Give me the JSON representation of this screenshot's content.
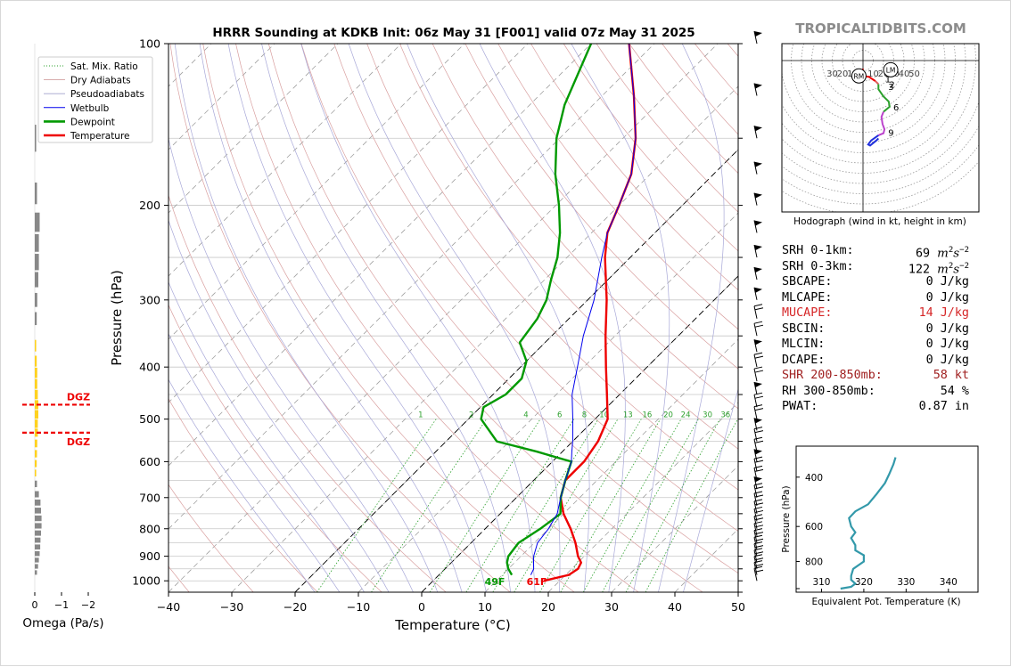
{
  "figure": {
    "title": "HRRR Sounding at KDKB Init: 06z May 31 [F001] valid 07z May 31 2025",
    "brand": "TROPICALTIDBITS.COM"
  },
  "chart_data": [
    {
      "type": "line",
      "name": "skewt",
      "xlabel": "Temperature (°C)",
      "ylabel": "Pressure (hPa)",
      "xlim": [
        -40,
        50
      ],
      "ylim": [
        1050,
        100
      ],
      "y_scale": "log",
      "skew": "temperature lines slant 45° to the right",
      "xticks": [
        -40,
        -30,
        -20,
        -10,
        0,
        10,
        20,
        30,
        40,
        50
      ],
      "xtick_labels": [
        "−40",
        "−30",
        "−20",
        "−10",
        "0",
        "10",
        "20",
        "30",
        "40",
        "50"
      ],
      "yticks": [
        100,
        200,
        300,
        400,
        500,
        600,
        700,
        800,
        900,
        1000
      ],
      "grid": true,
      "legend": {
        "position": "top-left",
        "entries": [
          {
            "label": "Sat. Mix. Ratio",
            "color": "#2ca02c",
            "style": "dotted"
          },
          {
            "label": "Dry Adiabats",
            "color": "#d2a0a0",
            "style": "solid-thin"
          },
          {
            "label": "Pseudoadiabats",
            "color": "#a0a0cc",
            "style": "solid-thin"
          },
          {
            "label": "Wetbulb",
            "color": "#0000ee",
            "style": "solid"
          },
          {
            "label": "Dewpoint",
            "color": "#009900",
            "style": "solid-thick"
          },
          {
            "label": "Temperature",
            "color": "#ee0000",
            "style": "solid-thick"
          }
        ]
      },
      "series": [
        {
          "name": "Temperature",
          "color": "#ee0000",
          "points": [
            [
              1000,
              17.5
            ],
            [
              975,
              20.5
            ],
            [
              950,
              21
            ],
            [
              925,
              20.5
            ],
            [
              900,
              19
            ],
            [
              850,
              16.5
            ],
            [
              800,
              13.5
            ],
            [
              750,
              10
            ],
            [
              700,
              7
            ],
            [
              650,
              5
            ],
            [
              600,
              5
            ],
            [
              550,
              4
            ],
            [
              500,
              2
            ],
            [
              450,
              -2
            ],
            [
              400,
              -6.5
            ],
            [
              350,
              -11.5
            ],
            [
              300,
              -17
            ],
            [
              250,
              -24
            ],
            [
              225,
              -27.5
            ],
            [
              200,
              -30
            ],
            [
              175,
              -33
            ],
            [
              150,
              -38
            ],
            [
              125,
              -45
            ],
            [
              100,
              -54
            ]
          ]
        },
        {
          "name": "Dewpoint",
          "color": "#009900",
          "points": [
            [
              975,
              11.5
            ],
            [
              950,
              10
            ],
            [
              925,
              8.8
            ],
            [
              900,
              8
            ],
            [
              850,
              7.5
            ],
            [
              800,
              8.7
            ],
            [
              750,
              9.5
            ],
            [
              700,
              7
            ],
            [
              650,
              5
            ],
            [
              600,
              3
            ],
            [
              575,
              -4
            ],
            [
              550,
              -12
            ],
            [
              500,
              -18
            ],
            [
              475,
              -19.5
            ],
            [
              450,
              -18
            ],
            [
              420,
              -18
            ],
            [
              390,
              -20
            ],
            [
              360,
              -24
            ],
            [
              325,
              -25
            ],
            [
              300,
              -26.5
            ],
            [
              275,
              -29
            ],
            [
              250,
              -31.5
            ],
            [
              225,
              -35
            ],
            [
              200,
              -39.5
            ],
            [
              175,
              -45
            ],
            [
              150,
              -50.5
            ],
            [
              130,
              -54.5
            ],
            [
              100,
              -60
            ]
          ]
        },
        {
          "name": "Wetbulb",
          "color": "#0000ee",
          "points": [
            [
              975,
              14.5
            ],
            [
              950,
              14
            ],
            [
              925,
              13
            ],
            [
              900,
              12
            ],
            [
              850,
              10.5
            ],
            [
              800,
              10
            ],
            [
              750,
              9
            ],
            [
              700,
              7
            ],
            [
              650,
              5
            ],
            [
              600,
              3
            ],
            [
              575,
              1.5
            ],
            [
              550,
              0
            ],
            [
              500,
              -3.5
            ],
            [
              450,
              -7.5
            ],
            [
              400,
              -11
            ],
            [
              350,
              -15
            ],
            [
              300,
              -19
            ],
            [
              250,
              -24.5
            ],
            [
              225,
              -27.5
            ],
            [
              200,
              -30
            ],
            [
              175,
              -33
            ],
            [
              150,
              -38
            ],
            [
              125,
              -45
            ],
            [
              100,
              -54
            ]
          ]
        }
      ],
      "mixing_ratio_labels": [
        "1",
        "2",
        "4",
        "6",
        "8",
        "10",
        "13",
        "16",
        "20",
        "24",
        "30",
        "36"
      ],
      "surface_labels": [
        {
          "text": "49F",
          "color": "#009900"
        },
        {
          "text": "61F",
          "color": "#ee0000"
        }
      ],
      "wind_barbs": "right edge, 100–1000 hPa"
    },
    {
      "type": "bar",
      "name": "omega",
      "xlabel": "Omega (Pa/s)",
      "xticks": [
        0,
        -1,
        -2
      ],
      "xtick_labels": [
        "0",
        "−1",
        "−2"
      ],
      "dgz_label": "DGZ",
      "values": [
        {
          "p": 150,
          "w": -0.02,
          "c": "#888888"
        },
        {
          "p": 190,
          "w": -0.05,
          "c": "#888888"
        },
        {
          "p": 215,
          "w": -0.15,
          "c": "#888888"
        },
        {
          "p": 235,
          "w": -0.12,
          "c": "#888888"
        },
        {
          "p": 255,
          "w": -0.12,
          "c": "#888888"
        },
        {
          "p": 275,
          "w": -0.1,
          "c": "#888888"
        },
        {
          "p": 300,
          "w": -0.06,
          "c": "#888888"
        },
        {
          "p": 325,
          "w": -0.04,
          "c": "#888888"
        },
        {
          "p": 365,
          "w": -0.02,
          "c": "#ffd21f"
        },
        {
          "p": 390,
          "w": -0.04,
          "c": "#ffd21f"
        },
        {
          "p": 410,
          "w": -0.06,
          "c": "#ffd21f"
        },
        {
          "p": 430,
          "w": -0.06,
          "c": "#ffd21f"
        },
        {
          "p": 450,
          "w": -0.08,
          "c": "#ffd21f"
        },
        {
          "p": 470,
          "w": -0.1,
          "c": "#ffd21f"
        },
        {
          "p": 490,
          "w": -0.1,
          "c": "#ffd21f"
        },
        {
          "p": 510,
          "w": -0.08,
          "c": "#ffd21f"
        },
        {
          "p": 530,
          "w": -0.08,
          "c": "#ffd21f"
        },
        {
          "p": 555,
          "w": -0.06,
          "c": "#ffd21f"
        },
        {
          "p": 580,
          "w": -0.05,
          "c": "#ffd21f"
        },
        {
          "p": 605,
          "w": -0.04,
          "c": "#ffd21f"
        },
        {
          "p": 630,
          "w": -0.02,
          "c": "#ffd21f"
        },
        {
          "p": 660,
          "w": -0.05,
          "c": "#888888"
        },
        {
          "p": 690,
          "w": -0.12,
          "c": "#888888"
        },
        {
          "p": 715,
          "w": -0.18,
          "c": "#888888"
        },
        {
          "p": 740,
          "w": -0.2,
          "c": "#888888"
        },
        {
          "p": 765,
          "w": -0.22,
          "c": "#888888"
        },
        {
          "p": 790,
          "w": -0.22,
          "c": "#888888"
        },
        {
          "p": 815,
          "w": -0.2,
          "c": "#888888"
        },
        {
          "p": 840,
          "w": -0.18,
          "c": "#888888"
        },
        {
          "p": 865,
          "w": -0.17,
          "c": "#888888"
        },
        {
          "p": 890,
          "w": -0.15,
          "c": "#888888"
        },
        {
          "p": 915,
          "w": -0.12,
          "c": "#888888"
        },
        {
          "p": 940,
          "w": -0.09,
          "c": "#888888"
        },
        {
          "p": 965,
          "w": -0.05,
          "c": "#888888"
        }
      ],
      "dgz_pressures": [
        470,
        530
      ]
    },
    {
      "type": "line",
      "name": "hodograph",
      "title": "Hodograph (wind in kt, height in km)",
      "ring_labels": [
        "30",
        "20",
        "10",
        "10",
        "20",
        "30",
        "40",
        "50"
      ],
      "storm_motion": [
        {
          "label": "RM",
          "u": -4,
          "v": -15
        },
        {
          "label": "LM",
          "u": 27,
          "v": -9
        }
      ],
      "segments": [
        {
          "color": "#ee0000",
          "points": [
            [
              0,
              -8
            ],
            [
              -1,
              -13
            ],
            [
              1,
              -15
            ],
            [
              6,
              -16
            ],
            [
              12,
              -20
            ]
          ]
        },
        {
          "color": "#e06060",
          "points": [
            [
              12,
              -20
            ],
            [
              15,
              -23
            ]
          ]
        },
        {
          "color": "#2ca02c",
          "points": [
            [
              15,
              -23
            ],
            [
              15,
              -28
            ],
            [
              20,
              -35
            ],
            [
              25,
              -40
            ],
            [
              26,
              -45
            ],
            [
              20,
              -50
            ]
          ]
        },
        {
          "color": "#bb44cc",
          "points": [
            [
              20,
              -50
            ],
            [
              18,
              -55
            ],
            [
              19,
              -62
            ],
            [
              21,
              -67
            ],
            [
              20,
              -71
            ],
            [
              15,
              -73
            ]
          ]
        },
        {
          "color": "#2030dd",
          "points": [
            [
              15,
              -73
            ],
            [
              8,
              -78
            ],
            [
              5,
              -82
            ],
            [
              7,
              -83
            ],
            [
              13,
              -78
            ],
            [
              15,
              -76
            ]
          ]
        }
      ],
      "height_labels": [
        {
          "text": "1",
          "u": 13,
          "v": -18
        },
        {
          "text": "2",
          "u": 17,
          "v": -23
        },
        {
          "text": "3",
          "u": 16,
          "v": -25
        },
        {
          "text": "6",
          "u": 21,
          "v": -45
        },
        {
          "text": "9",
          "u": 16,
          "v": -70
        }
      ]
    },
    {
      "type": "line",
      "name": "theta_e",
      "xlabel": "Equivalent Pot. Temperature (K)",
      "ylabel": "Pressure (hPa)",
      "xticks": [
        310,
        320,
        330,
        340
      ],
      "yticks": [
        400,
        600,
        800
      ],
      "series": [
        {
          "name": "theta-e",
          "color": "#3399aa",
          "points": [
            [
              1000,
              314.5
            ],
            [
              985,
              317
            ],
            [
              960,
              318
            ],
            [
              930,
              317
            ],
            [
              900,
              317
            ],
            [
              850,
              317.5
            ],
            [
              800,
              320
            ],
            [
              760,
              320
            ],
            [
              730,
              318
            ],
            [
              700,
              318
            ],
            [
              660,
              317
            ],
            [
              630,
              318
            ],
            [
              600,
              317
            ],
            [
              560,
              316.5
            ],
            [
              530,
              318
            ],
            [
              500,
              321
            ],
            [
              460,
              323
            ],
            [
              420,
              325
            ],
            [
              390,
              326
            ],
            [
              360,
              327
            ],
            [
              340,
              327.5
            ]
          ]
        }
      ]
    }
  ],
  "parameters": [
    {
      "label": "SRH 0-1km:",
      "value": "69",
      "unit": "m2s-2",
      "color": "black"
    },
    {
      "label": "SRH 0-3km:",
      "value": "122",
      "unit": "m2s-2",
      "color": "black"
    },
    {
      "label": "SBCAPE:",
      "value": "0 J/kg",
      "color": "black"
    },
    {
      "label": "MLCAPE:",
      "value": "0 J/kg",
      "color": "black"
    },
    {
      "label": "MUCAPE:",
      "value": "14 J/kg",
      "color": "red"
    },
    {
      "label": "SBCIN:",
      "value": "0 J/kg",
      "color": "black"
    },
    {
      "label": "MLCIN:",
      "value": "0 J/kg",
      "color": "black"
    },
    {
      "label": "DCAPE:",
      "value": "0 J/kg",
      "color": "black"
    },
    {
      "label": "SHR 200-850mb:",
      "value": "58 kt",
      "color": "brown"
    },
    {
      "label": "RH 300-850mb:",
      "value": "54 %",
      "color": "black"
    },
    {
      "label": "PWAT:",
      "value": "0.87 in",
      "color": "black"
    }
  ]
}
